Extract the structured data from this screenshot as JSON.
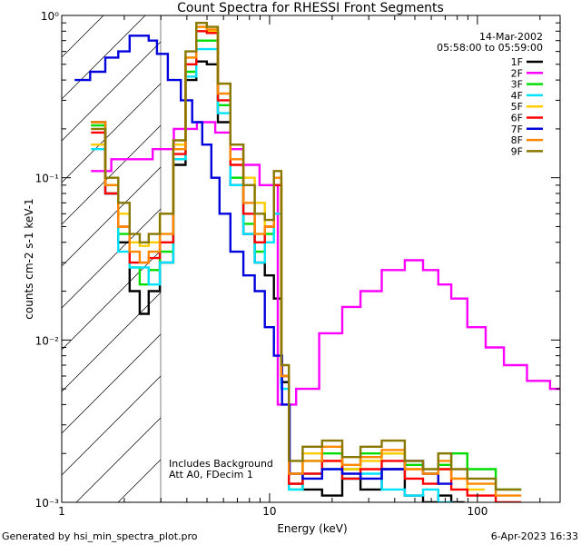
{
  "chart_data": {
    "type": "line",
    "title": "Count Spectra for RHESSI Front Segments",
    "xlabel": "Energy (keV)",
    "ylabel": "counts cm-2 s-1 keV-1",
    "x_scale": "log",
    "y_scale": "log",
    "xlim": [
      1,
      250
    ],
    "ylim": [
      0.001,
      1.0
    ],
    "x_ticks": [
      {
        "v": 1,
        "label": "1"
      },
      {
        "v": 10,
        "label": "10"
      },
      {
        "v": 100,
        "label": "100"
      }
    ],
    "y_ticks": [
      {
        "v": 1,
        "label": "10⁰"
      },
      {
        "v": 0.1,
        "label": "10⁻¹"
      },
      {
        "v": 0.01,
        "label": "10⁻²"
      },
      {
        "v": 0.001,
        "label": "10⁻³"
      }
    ],
    "date_line": "14-Mar-2002",
    "time_line": "05:58:00 to 05:59:00",
    "annotations": [
      "Includes Background",
      "Att A0, FDecim 1"
    ],
    "footer_left": "Generated by hsi_min_spectra_plot.pro",
    "footer_right": "6-Apr-2023 16:33",
    "shaded_region_x": [
      1,
      3
    ],
    "series": [
      {
        "name": "1F",
        "color": "#000000",
        "x": [
          1.5,
          1.75,
          2.0,
          2.25,
          2.5,
          2.75,
          3.2,
          3.7,
          4.2,
          4.7,
          5.3,
          6.0,
          7.0,
          8.0,
          9.0,
          10.0,
          11.0,
          11.8,
          13,
          16,
          20,
          25,
          30,
          40,
          50,
          60,
          70,
          80
        ],
        "y": [
          0.22,
          0.08,
          0.04,
          0.02,
          0.0145,
          0.02,
          0.03,
          0.12,
          0.4,
          0.52,
          0.5,
          0.22,
          0.09,
          0.045,
          0.03,
          0.025,
          0.018,
          0.0055,
          0.0013,
          0.0012,
          0.0011,
          0.0014,
          0.0012,
          0.0016,
          0.0011,
          0.001,
          0.0011,
          0.001
        ]
      },
      {
        "name": "2F",
        "color": "#ff00ff",
        "x": [
          1.5,
          2.0,
          2.5,
          3.0,
          4.0,
          5.0,
          6.0,
          7.0,
          8.0,
          10.0,
          12,
          15,
          20,
          25,
          30,
          40,
          50,
          60,
          70,
          80,
          100,
          120,
          150,
          200,
          250
        ],
        "y": [
          0.11,
          0.13,
          0.13,
          0.15,
          0.2,
          0.22,
          0.19,
          0.15,
          0.12,
          0.09,
          0.004,
          0.005,
          0.011,
          0.016,
          0.02,
          0.027,
          0.031,
          0.027,
          0.022,
          0.018,
          0.012,
          0.009,
          0.007,
          0.0056,
          0.005
        ]
      },
      {
        "name": "3F",
        "color": "#00dd00",
        "x": [
          1.5,
          1.75,
          2.0,
          2.25,
          2.5,
          2.75,
          3.2,
          3.7,
          4.2,
          4.7,
          5.3,
          6.0,
          7.0,
          8.0,
          9.0,
          10.0,
          11.0,
          11.8,
          13,
          16,
          20,
          25,
          30,
          40,
          50,
          60,
          70,
          80,
          100,
          150
        ],
        "y": [
          0.21,
          0.09,
          0.045,
          0.028,
          0.022,
          0.027,
          0.035,
          0.13,
          0.45,
          0.7,
          0.7,
          0.28,
          0.1,
          0.052,
          0.035,
          0.045,
          0.09,
          0.006,
          0.0012,
          0.0018,
          0.002,
          0.0016,
          0.002,
          0.002,
          0.0017,
          0.0015,
          0.0017,
          0.002,
          0.0016,
          0.0012
        ]
      },
      {
        "name": "4F",
        "color": "#00e0ff",
        "x": [
          1.5,
          1.75,
          2.0,
          2.25,
          2.5,
          2.75,
          3.2,
          3.7,
          4.2,
          4.7,
          5.3,
          6.0,
          7.0,
          8.0,
          9.0,
          10.0,
          11.0,
          11.8,
          13,
          16,
          20,
          25,
          30,
          40,
          50,
          60,
          70
        ],
        "y": [
          0.15,
          0.08,
          0.035,
          0.028,
          0.028,
          0.022,
          0.03,
          0.13,
          0.42,
          0.62,
          0.62,
          0.25,
          0.09,
          0.045,
          0.03,
          0.04,
          0.06,
          0.005,
          0.0012,
          0.0015,
          0.0016,
          0.0014,
          0.0015,
          0.0012,
          0.0011,
          0.0012,
          0.001
        ]
      },
      {
        "name": "5F",
        "color": "#ffcc00",
        "x": [
          1.5,
          1.75,
          2.0,
          2.25,
          2.5,
          2.75,
          3.2,
          3.7,
          4.2,
          4.7,
          5.3,
          6.0,
          7.0,
          8.0,
          9.0,
          10.0,
          11.0,
          11.8,
          13,
          16,
          20,
          25,
          30,
          40,
          50,
          60,
          70,
          80,
          100
        ],
        "y": [
          0.16,
          0.09,
          0.06,
          0.04,
          0.038,
          0.04,
          0.06,
          0.16,
          0.55,
          0.85,
          0.8,
          0.38,
          0.16,
          0.1,
          0.07,
          0.05,
          0.1,
          0.006,
          0.0015,
          0.002,
          0.0018,
          0.0016,
          0.0018,
          0.002,
          0.0016,
          0.0015,
          0.0016,
          0.0014,
          0.0012
        ]
      },
      {
        "name": "6F",
        "color": "#ff0000",
        "x": [
          1.5,
          1.75,
          2.0,
          2.25,
          2.5,
          2.75,
          3.2,
          3.7,
          4.2,
          4.7,
          5.3,
          6.0,
          7.0,
          8.0,
          9.0,
          10.0,
          11.0,
          11.8,
          13,
          16,
          20,
          25,
          30,
          40,
          50,
          60,
          70,
          80,
          100,
          150
        ],
        "y": [
          0.19,
          0.08,
          0.05,
          0.03,
          0.03,
          0.032,
          0.04,
          0.14,
          0.5,
          0.8,
          0.78,
          0.3,
          0.12,
          0.06,
          0.04,
          0.05,
          0.09,
          0.006,
          0.0013,
          0.0015,
          0.0018,
          0.0014,
          0.0016,
          0.0018,
          0.0014,
          0.0013,
          0.0016,
          0.0012,
          0.0011,
          0.001
        ]
      },
      {
        "name": "7F",
        "color": "#0000dd",
        "x": [
          1.25,
          1.5,
          1.75,
          2.0,
          2.25,
          2.5,
          2.75,
          3.0,
          3.5,
          4.0,
          4.5,
          5.0,
          5.5,
          6.0,
          7.0,
          8.0,
          9.0,
          10.0,
          11.0,
          12.0,
          13,
          16,
          20,
          25,
          30,
          40,
          50,
          60,
          70
        ],
        "y": [
          0.4,
          0.45,
          0.55,
          0.6,
          0.75,
          0.75,
          0.7,
          0.58,
          0.4,
          0.3,
          0.22,
          0.16,
          0.1,
          0.06,
          0.035,
          0.025,
          0.02,
          0.012,
          0.008,
          0.004,
          0.0015,
          0.0014,
          0.0016,
          0.0015,
          0.0014,
          0.0016,
          0.0018,
          0.0015,
          0.0013
        ]
      },
      {
        "name": "8F",
        "color": "#ff8800",
        "x": [
          1.5,
          1.75,
          2.0,
          2.25,
          2.5,
          2.75,
          3.2,
          3.7,
          4.2,
          4.7,
          5.3,
          6.0,
          7.0,
          8.0,
          9.0,
          10.0,
          11.0,
          11.8,
          13,
          16,
          20,
          25,
          30,
          40,
          50,
          60,
          70,
          80,
          100,
          150
        ],
        "y": [
          0.22,
          0.09,
          0.05,
          0.035,
          0.03,
          0.035,
          0.045,
          0.15,
          0.55,
          0.85,
          0.82,
          0.33,
          0.13,
          0.07,
          0.045,
          0.05,
          0.1,
          0.006,
          0.0015,
          0.0018,
          0.0022,
          0.0017,
          0.0019,
          0.0021,
          0.0016,
          0.0015,
          0.0018,
          0.0014,
          0.0013,
          0.0011
        ]
      },
      {
        "name": "9F",
        "color": "#887700",
        "x": [
          1.5,
          1.75,
          2.0,
          2.25,
          2.5,
          2.75,
          3.2,
          3.7,
          4.2,
          4.7,
          5.3,
          6.0,
          7.0,
          8.0,
          9.0,
          10.0,
          11.0,
          11.8,
          13,
          16,
          20,
          25,
          30,
          40,
          50,
          60,
          70,
          80,
          100,
          150
        ],
        "y": [
          0.2,
          0.1,
          0.07,
          0.045,
          0.04,
          0.045,
          0.06,
          0.17,
          0.6,
          0.9,
          0.85,
          0.38,
          0.16,
          0.09,
          0.06,
          0.055,
          0.11,
          0.007,
          0.0018,
          0.0022,
          0.0024,
          0.0019,
          0.0022,
          0.0024,
          0.0018,
          0.0016,
          0.002,
          0.0016,
          0.0014,
          0.0012
        ]
      }
    ]
  }
}
